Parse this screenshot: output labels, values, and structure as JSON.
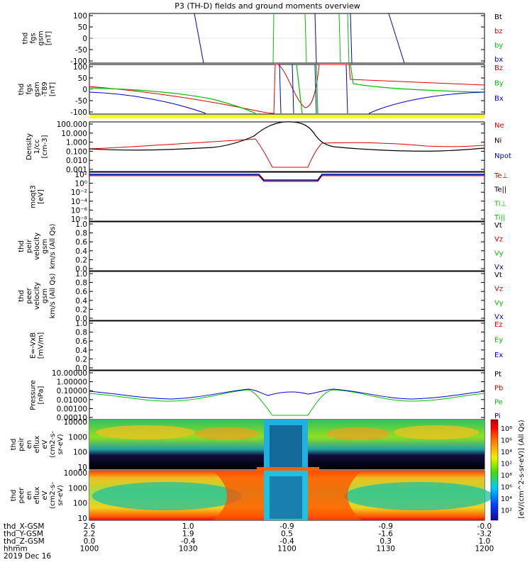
{
  "title": "P3 (TH-D) fields and ground moments overview",
  "date": "2019 Dec 16",
  "panels": [
    {
      "id": "fgs",
      "ylabel": [
        "thd",
        "fgs",
        "gsm",
        "[nT]"
      ],
      "yticks": [
        "100",
        "50",
        "0",
        "-50",
        "-100"
      ],
      "legend": [
        {
          "text": "Bt",
          "color": "#000000"
        },
        {
          "text": "bz",
          "color": "#e00000"
        },
        {
          "text": "by",
          "color": "#00c000"
        },
        {
          "text": "bx",
          "color": "#0000d0"
        }
      ]
    },
    {
      "id": "fgs_t89",
      "ylabel": [
        "thd",
        "fgs",
        "gsm",
        "-T89",
        "[nT]"
      ],
      "yticks": [
        "100",
        "50",
        "0",
        "-50",
        "-100"
      ],
      "legend": [
        {
          "text": "Bz",
          "color": "#e00000"
        },
        {
          "text": "By",
          "color": "#00c000"
        },
        {
          "text": "Bx",
          "color": "#0000d0"
        }
      ]
    },
    {
      "id": "density",
      "ylabel": [
        "Density",
        "1/cc",
        "[cm-3]"
      ],
      "yticks": [
        "100.000",
        "10.000",
        "1.000",
        "0.100",
        "0.010",
        "0.001"
      ],
      "legend": [
        {
          "text": "Ne",
          "color": "#e00000"
        },
        {
          "text": "Ni",
          "color": "#000000"
        },
        {
          "text": "Npot",
          "color": "#0000d0"
        }
      ]
    },
    {
      "id": "temp",
      "ylabel": [
        "moqt3",
        "[eV]"
      ],
      "yticks": [
        "10²",
        "10⁰",
        "10⁻²",
        "10⁻⁴",
        "10⁻⁶",
        "10⁻⁸"
      ],
      "legend": [
        {
          "text": "Te⊥",
          "color": "#e00000"
        },
        {
          "text": "Te||",
          "color": "#000000"
        },
        {
          "text": "Ti⊥",
          "color": "#00c000"
        },
        {
          "text": "Ti||",
          "color": "#00c000"
        }
      ]
    },
    {
      "id": "peir_vel",
      "ylabel": [
        "thd",
        "peir",
        "velocity",
        "gsm",
        "km/s (All Qs)"
      ],
      "yticks": [
        "1.0",
        "0.8",
        "0.6",
        "0.4",
        "0.2",
        "0.0"
      ],
      "legend": [
        {
          "text": "Vt",
          "color": "#000000"
        },
        {
          "text": "Vz",
          "color": "#e00000"
        },
        {
          "text": "Vy",
          "color": "#00c000"
        },
        {
          "text": "Vx",
          "color": "#0000d0"
        }
      ]
    },
    {
      "id": "peer_vel",
      "ylabel": [
        "thd",
        "peer",
        "velocity",
        "gsm",
        "km/s (All Qs)"
      ],
      "yticks": [
        "1.0",
        "0.8",
        "0.6",
        "0.4",
        "0.2",
        "0.0"
      ],
      "legend": [
        {
          "text": "Vt",
          "color": "#000000"
        },
        {
          "text": "Vz",
          "color": "#e00000"
        },
        {
          "text": "Vy",
          "color": "#00c000"
        },
        {
          "text": "Vx",
          "color": "#0000d0"
        }
      ]
    },
    {
      "id": "efield",
      "ylabel": [
        "E=-VxB",
        "[mV/m]"
      ],
      "yticks": [
        "1.0",
        "0.8",
        "0.6",
        "0.4",
        "0.2",
        "0.0"
      ],
      "legend": [
        {
          "text": "Ez",
          "color": "#e00000"
        },
        {
          "text": "Ey",
          "color": "#00c000"
        },
        {
          "text": "Ex",
          "color": "#0000d0"
        }
      ]
    },
    {
      "id": "pressure",
      "ylabel": [
        "Pressure",
        "[nPa]"
      ],
      "yticks": [
        "10.00000",
        "1.00000",
        "0.10000",
        "0.01000",
        "0.00100",
        "0.00010"
      ],
      "legend": [
        {
          "text": "Pt",
          "color": "#000000"
        },
        {
          "text": "Pb",
          "color": "#e00000"
        },
        {
          "text": "Pe",
          "color": "#00c000"
        },
        {
          "text": "Pi",
          "color": "#0000d0"
        }
      ]
    },
    {
      "id": "peir_en",
      "ylabel": [
        "thd",
        "peir",
        "en",
        "eflux",
        "eV",
        "(cm2-s-",
        "sr-eV)"
      ],
      "yticks": [
        "10000",
        "1000",
        "100",
        "10"
      ]
    },
    {
      "id": "peer_en",
      "ylabel": [
        "thd",
        "peer",
        "en",
        "eflux",
        "eV",
        "(cm2-s-",
        "sr-eV)"
      ],
      "yticks": [
        "10000",
        "1000",
        "100",
        "10"
      ]
    }
  ],
  "colorbar": {
    "ticks": [
      "10⁸",
      "10⁶",
      "10⁴",
      "10²",
      "10⁸",
      "10⁶",
      "10⁴",
      "10²"
    ],
    "label": "[eV/(cm^2-s-sr-eV)] (All Qs)"
  },
  "xaxis": {
    "row_labels": [
      "thd_X-GSM",
      "thd_Y-GSM",
      "thd_Z-GSM",
      "hhmm"
    ],
    "columns": [
      [
        "2.6",
        "2.2",
        "0.0",
        "1000"
      ],
      [
        "1.0",
        "1.9",
        "-0.4",
        "1030"
      ],
      [
        "-0.9",
        "0.5",
        "-0.4",
        "1100"
      ],
      [
        "-0.9",
        "-1.6",
        "0.3",
        "1130"
      ],
      [
        "-0.0",
        "-3.2",
        "1.0",
        "1200"
      ]
    ]
  },
  "chart_data": [
    {
      "type": "line",
      "title": "P3 (TH-D) fields and ground moments overview",
      "ylabel": "thd fgs gsm [nT]",
      "x": [
        "1000",
        "1030",
        "1100",
        "1130",
        "1200"
      ],
      "ylim": [
        -100,
        100
      ],
      "series": [
        {
          "name": "bx",
          "values": [
            -100,
            null,
            null,
            null,
            -100
          ]
        },
        {
          "name": "by",
          "values": [
            null,
            null,
            100,
            null,
            null
          ]
        },
        {
          "name": "bz",
          "values": [
            null,
            null,
            null,
            null,
            null
          ]
        }
      ]
    },
    {
      "type": "line",
      "ylabel": "thd fgs gsm -T89 [nT]",
      "x": [
        "1000",
        "1015",
        "1030",
        "1045",
        "1100",
        "1115",
        "1130",
        "1145",
        "1200"
      ],
      "ylim": [
        -100,
        100
      ],
      "series": [
        {
          "name": "Bz",
          "values": [
            20,
            5,
            -25,
            -70,
            -90,
            20,
            15,
            10,
            10
          ]
        },
        {
          "name": "By",
          "values": [
            0,
            0,
            -20,
            -60,
            -100,
            5,
            -5,
            -5,
            -5
          ]
        },
        {
          "name": "Bx",
          "values": [
            -15,
            -40,
            -100,
            -100,
            -100,
            -100,
            -70,
            -40,
            -15
          ]
        }
      ]
    },
    {
      "type": "line",
      "ylabel": "Density 1/cc [cm-3]",
      "x": [
        "1000",
        "1015",
        "1030",
        "1045",
        "1052",
        "1100",
        "1108",
        "1115",
        "1130",
        "1145",
        "1200"
      ],
      "yscale": "log",
      "ylim": [
        0.0005,
        500
      ],
      "series": [
        {
          "name": "Ne",
          "values": [
            0.3,
            0.5,
            1.2,
            3.0,
            0.003,
            0.003,
            0.003,
            1.5,
            1.0,
            0.4,
            0.3
          ]
        },
        {
          "name": "Ni",
          "values": [
            0.25,
            0.2,
            0.3,
            2.0,
            20,
            80,
            60,
            1.2,
            0.6,
            0.2,
            0.25
          ]
        }
      ]
    },
    {
      "type": "line",
      "ylabel": "moqt3 [eV]",
      "x": [
        "1000",
        "1050",
        "1100",
        "1110",
        "1200"
      ],
      "yscale": "log",
      "ylim": [
        1e-08,
        1000
      ],
      "series": [
        {
          "name": "Te⊥",
          "values": [
            150,
            150,
            10,
            150,
            150
          ]
        },
        {
          "name": "Te||",
          "values": [
            150,
            150,
            10,
            150,
            150
          ]
        }
      ]
    },
    {
      "type": "line",
      "ylabel": "Pressure [nPa]",
      "x": [
        "1000",
        "1015",
        "1030",
        "1045",
        "1052",
        "1100",
        "1108",
        "1115",
        "1130",
        "1145",
        "1200"
      ],
      "yscale": "log",
      "ylim": [
        5e-05,
        20
      ],
      "series": [
        {
          "name": "Pe",
          "values": [
            0.02,
            0.006,
            0.02,
            0.05,
            0.0002,
            0.0001,
            0.0002,
            0.05,
            0.02,
            0.006,
            0.02
          ]
        },
        {
          "name": "Pi",
          "values": [
            0.03,
            0.008,
            0.03,
            0.06,
            0.02,
            0.06,
            0.02,
            0.06,
            0.03,
            0.008,
            0.03
          ]
        }
      ]
    },
    {
      "type": "heatmap",
      "ylabel": "thd peir en eflux eV (cm2-s-sr-eV)",
      "yscale": "log",
      "ylim": [
        5,
        30000
      ],
      "colorbar_ticks": [
        "10²",
        "10⁴",
        "10⁶",
        "10⁸"
      ]
    },
    {
      "type": "heatmap",
      "ylabel": "thd peer en eflux eV (cm2-s-sr-eV)",
      "yscale": "log",
      "ylim": [
        5,
        30000
      ],
      "colorbar_ticks": [
        "10²",
        "10⁴",
        "10⁶",
        "10⁸"
      ]
    }
  ]
}
